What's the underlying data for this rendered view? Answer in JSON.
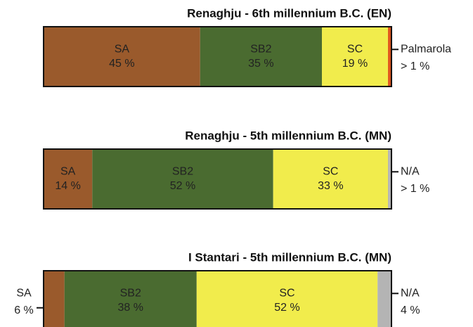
{
  "chart_data": [
    {
      "type": "bar",
      "title": "Renaghju - 6th millennium B.C. (EN)",
      "xlim": [
        0,
        100
      ],
      "series": [
        {
          "name": "SA",
          "color": "#9a5a2c",
          "values": [
            45
          ],
          "value_labels": [
            "45 %"
          ]
        },
        {
          "name": "SB2",
          "color": "#4a6b30",
          "values": [
            35
          ],
          "value_labels": [
            "35 %"
          ]
        },
        {
          "name": "SC",
          "color": "#f1ec4c",
          "values": [
            19
          ],
          "value_labels": [
            "19 %"
          ]
        },
        {
          "name": "Palmarola",
          "color": "#e0561c",
          "values": [
            1
          ],
          "value_labels": [
            "> 1 %"
          ]
        }
      ]
    },
    {
      "type": "bar",
      "title": "Renaghju - 5th millennium B.C. (MN)",
      "xlim": [
        0,
        100
      ],
      "series": [
        {
          "name": "SA",
          "color": "#9a5a2c",
          "values": [
            14
          ],
          "value_labels": [
            "14 %"
          ]
        },
        {
          "name": "SB2",
          "color": "#4a6b30",
          "values": [
            52
          ],
          "value_labels": [
            "52 %"
          ]
        },
        {
          "name": "SC",
          "color": "#f1ec4c",
          "values": [
            33
          ],
          "value_labels": [
            "33 %"
          ]
        },
        {
          "name": "N/A",
          "color": "#b4b4b4",
          "values": [
            1
          ],
          "value_labels": [
            "> 1 %"
          ]
        }
      ]
    },
    {
      "type": "bar",
      "title": "I Stantari - 5th millennium B.C. (MN)",
      "xlim": [
        0,
        100
      ],
      "series": [
        {
          "name": "SA",
          "color": "#9a5a2c",
          "values": [
            6
          ],
          "value_labels": [
            "6 %"
          ]
        },
        {
          "name": "SB2",
          "color": "#4a6b30",
          "values": [
            38
          ],
          "value_labels": [
            "38 %"
          ]
        },
        {
          "name": "SC",
          "color": "#f1ec4c",
          "values": [
            52
          ],
          "value_labels": [
            "52 %"
          ]
        },
        {
          "name": "N/A",
          "color": "#b4b4b4",
          "values": [
            4
          ],
          "value_labels": [
            "4 %"
          ]
        }
      ]
    }
  ]
}
